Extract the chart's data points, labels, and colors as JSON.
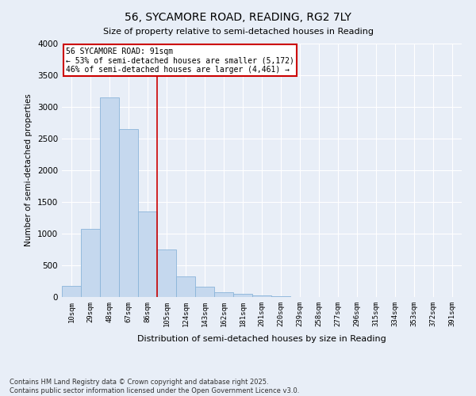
{
  "title_line1": "56, SYCAMORE ROAD, READING, RG2 7LY",
  "title_line2": "Size of property relative to semi-detached houses in Reading",
  "xlabel": "Distribution of semi-detached houses by size in Reading",
  "ylabel": "Number of semi-detached properties",
  "categories": [
    "10sqm",
    "29sqm",
    "48sqm",
    "67sqm",
    "86sqm",
    "105sqm",
    "124sqm",
    "143sqm",
    "162sqm",
    "181sqm",
    "201sqm",
    "220sqm",
    "239sqm",
    "258sqm",
    "277sqm",
    "296sqm",
    "315sqm",
    "334sqm",
    "353sqm",
    "372sqm",
    "391sqm"
  ],
  "values": [
    180,
    1080,
    3150,
    2650,
    1350,
    750,
    320,
    160,
    75,
    50,
    30,
    15,
    5,
    2,
    2,
    1,
    0,
    0,
    0,
    0,
    0
  ],
  "bar_color": "#c5d8ee",
  "bar_edge_color": "#8ab4d9",
  "vline_x_index": 4.5,
  "vline_color": "#cc0000",
  "annotation_text": "56 SYCAMORE ROAD: 91sqm\n← 53% of semi-detached houses are smaller (5,172)\n46% of semi-detached houses are larger (4,461) →",
  "annotation_box_color": "#ffffff",
  "annotation_box_edge": "#cc0000",
  "ylim": [
    0,
    4000
  ],
  "yticks": [
    0,
    500,
    1000,
    1500,
    2000,
    2500,
    3000,
    3500,
    4000
  ],
  "background_color": "#e8eef7",
  "grid_color": "#ffffff",
  "footnote": "Contains HM Land Registry data © Crown copyright and database right 2025.\nContains public sector information licensed under the Open Government Licence v3.0.",
  "bar_width": 1.0
}
